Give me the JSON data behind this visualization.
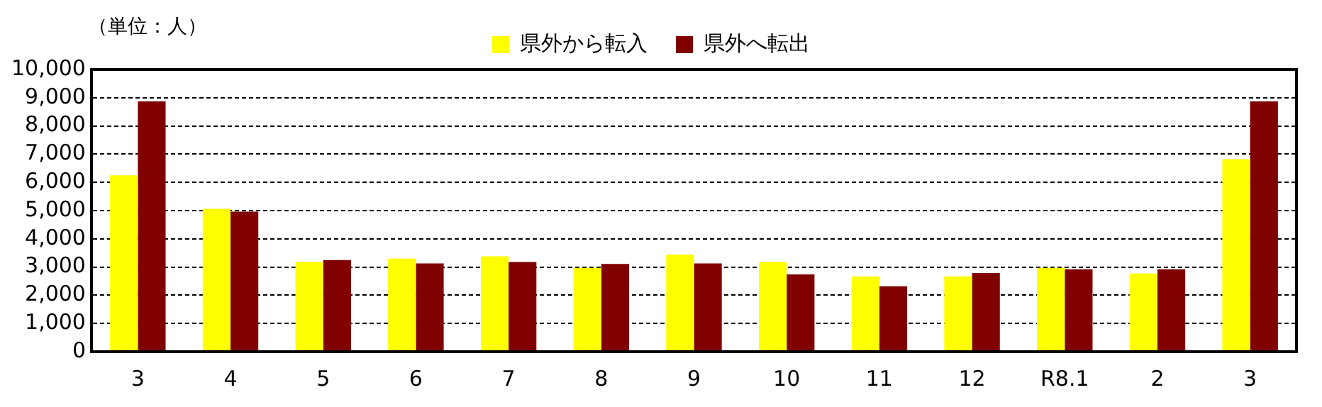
{
  "chart_data": {
    "type": "bar",
    "categories": [
      "3",
      "4",
      "5",
      "6",
      "7",
      "8",
      "9",
      "10",
      "11",
      "12",
      "R8.1",
      "2",
      "3"
    ],
    "series": [
      {
        "name": "県外から転入",
        "color": "#ffff00",
        "values": [
          6250,
          5060,
          3180,
          3300,
          3380,
          2970,
          3440,
          3180,
          2670,
          2670,
          2970,
          2770,
          6820
        ]
      },
      {
        "name": "県外へ転出",
        "color": "#800000",
        "values": [
          8870,
          4960,
          3250,
          3130,
          3180,
          3110,
          3130,
          2740,
          2320,
          2790,
          2920,
          2920,
          8870
        ]
      }
    ],
    "ylim": [
      0,
      10000
    ],
    "yticks": [
      {
        "value": 0,
        "label": "0"
      },
      {
        "value": 1000,
        "label": "1,000"
      },
      {
        "value": 2000,
        "label": "2,000"
      },
      {
        "value": 3000,
        "label": "3,000"
      },
      {
        "value": 4000,
        "label": "4,000"
      },
      {
        "value": 5000,
        "label": "5,000"
      },
      {
        "value": 6000,
        "label": "6,000"
      },
      {
        "value": 7000,
        "label": "7,000"
      },
      {
        "value": 8000,
        "label": "8,000"
      },
      {
        "value": 9000,
        "label": "9,000"
      },
      {
        "value": 10000,
        "label": "10,000"
      }
    ],
    "grid": "y",
    "legend": "top",
    "annotations": [
      "（単位：人）"
    ]
  }
}
